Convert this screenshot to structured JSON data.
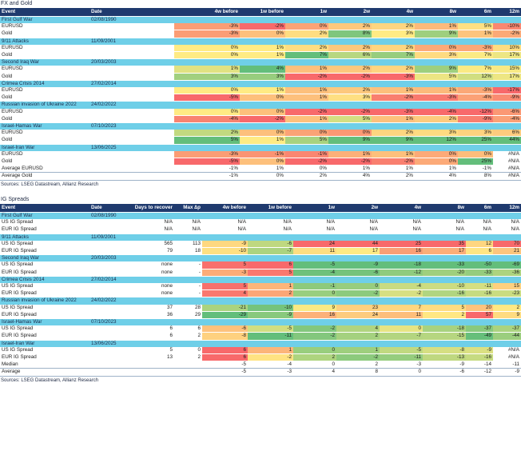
{
  "fx": {
    "title": "FX and Gold",
    "headers": [
      "Event",
      "Date",
      "4w before",
      "1w before",
      "1w",
      "2w",
      "4w",
      "8w",
      "6m",
      "12m"
    ],
    "events": [
      {
        "name": "First Gulf War",
        "date": "02/08/1990",
        "rows": [
          {
            "label": "EURUSD",
            "values": [
              "-3%",
              "-2%",
              "0%",
              "2%",
              "2%",
              "1%",
              "5%",
              "-10%"
            ]
          },
          {
            "label": "Gold",
            "values": [
              "-3%",
              "0%",
              "2%",
              "8%",
              "3%",
              "9%",
              "1%",
              "-2%"
            ]
          }
        ]
      },
      {
        "name": "9/11 Attacks",
        "date": "11/09/2001",
        "rows": [
          {
            "label": "EURUSD",
            "values": [
              "0%",
              "1%",
              "2%",
              "2%",
              "2%",
              "0%",
              "-3%",
              "10%"
            ]
          },
          {
            "label": "Gold",
            "values": [
              "0%",
              "1%",
              "7%",
              "6%",
              "7%",
              "3%",
              "7%",
              "17%"
            ]
          }
        ]
      },
      {
        "name": "Second Iraq War",
        "date": "20/03/2003",
        "rows": [
          {
            "label": "EURUSD",
            "values": [
              "1%",
              "4%",
              "1%",
              "2%",
              "2%",
              "9%",
              "7%",
              "15%"
            ]
          },
          {
            "label": "Gold",
            "values": [
              "3%",
              "3%",
              "-2%",
              "-2%",
              "-3%",
              "5%",
              "12%",
              "17%"
            ]
          }
        ]
      },
      {
        "name": "Crimea Crisis 2014",
        "date": "27/02/2014",
        "rows": [
          {
            "label": "EURUSD",
            "values": [
              "0%",
              "1%",
              "1%",
              "2%",
              "1%",
              "1%",
              "-3%",
              "-17%"
            ]
          },
          {
            "label": "Gold",
            "values": [
              "-5%",
              "0%",
              "1%",
              "3%",
              "-2%",
              "-3%",
              "-4%",
              "-9%"
            ]
          }
        ]
      },
      {
        "name": "Russian invasion of Ukraine 2022",
        "date": "24/02/2022",
        "rows": [
          {
            "label": "EURUSD",
            "values": [
              "0%",
              "0%",
              "-2%",
              "-2%",
              "-3%",
              "-4%",
              "-12%",
              "-6%"
            ]
          },
          {
            "label": "Gold",
            "values": [
              "-4%",
              "-2%",
              "1%",
              "5%",
              "1%",
              "2%",
              "-9%",
              "-4%"
            ]
          }
        ]
      },
      {
        "name": "Israel-Hamas War",
        "date": "07/10/2023",
        "rows": [
          {
            "label": "EURUSD",
            "values": [
              "2%",
              "0%",
              "0%",
              "0%",
              "2%",
              "3%",
              "3%",
              "6%"
            ]
          },
          {
            "label": "Gold",
            "values": [
              "5%",
              "1%",
              "5%",
              "9%",
              "9%",
              "12%",
              "25%",
              "44%"
            ]
          }
        ]
      },
      {
        "name": "Israel-Iran War",
        "date": "13/06/2025",
        "rows": [
          {
            "label": "EURUSD",
            "values": [
              "-3%",
              "-1%",
              "-1%",
              "1%",
              "1%",
              "0%",
              "0%",
              "#N/A"
            ]
          },
          {
            "label": "Gold",
            "values": [
              "-5%",
              "0%",
              "-2%",
              "-2%",
              "-2%",
              "0%",
              "25%",
              "#N/A"
            ]
          }
        ]
      }
    ],
    "summary": [
      {
        "label": "Average EURUSD",
        "values": [
          "-1%",
          "1%",
          "0%",
          "1%",
          "1%",
          "1%",
          "-1%",
          "#N/A"
        ]
      },
      {
        "label": "Average Gold",
        "values": [
          "-1%",
          "0%",
          "2%",
          "4%",
          "2%",
          "4%",
          "8%",
          "#N/A"
        ]
      }
    ],
    "source": "Sources: LSEG Datastream, Allianz Research"
  },
  "ig": {
    "title": "IG Spreads",
    "headers": [
      "Event",
      "Date",
      "Days to recover",
      "Max ∆p",
      "4w before",
      "1w before",
      "1w",
      "2w",
      "4w",
      "8w",
      "6m",
      "12m"
    ],
    "events": [
      {
        "name": "First Gulf War",
        "date": "02/08/1990",
        "rows": [
          {
            "label": "US IG Spread",
            "days": "N/A",
            "max": "N/A",
            "values": [
              "N/A",
              "N/A",
              "N/A",
              "N/A",
              "N/A",
              "N/A",
              "N/A",
              "N/A"
            ]
          },
          {
            "label": "EUR IG Spread",
            "days": "N/A",
            "max": "N/A",
            "values": [
              "N/A",
              "N/A",
              "N/A",
              "N/A",
              "N/A",
              "N/A",
              "N/A",
              "N/A"
            ]
          }
        ]
      },
      {
        "name": "9/11 Attacks",
        "date": "11/09/2001",
        "rows": [
          {
            "label": "US IG Spread",
            "days": "565",
            "max": "113",
            "values": [
              "-9",
              "-6",
              "24",
              "44",
              "25",
              "35",
              "12",
              "70"
            ]
          },
          {
            "label": "EUR IG Spread",
            "days": "79",
            "max": "18",
            "values": [
              "-10",
              "-7",
              "11",
              "17",
              "16",
              "17",
              "6",
              "21"
            ]
          }
        ]
      },
      {
        "name": "Second Iraq War",
        "date": "20/03/2003",
        "rows": [
          {
            "label": "US IG Spread",
            "days": "none",
            "max": "-",
            "values": [
              "5",
              "6",
              "-5",
              "-9",
              "-18",
              "-33",
              "-50",
              "-69"
            ]
          },
          {
            "label": "EUR IG Spread",
            "days": "none",
            "max": "-",
            "values": [
              "-3",
              "5",
              "-4",
              "-6",
              "-12",
              "-20",
              "-33",
              "-36"
            ]
          }
        ]
      },
      {
        "name": "Crimea Crisis 2014",
        "date": "27/02/2014",
        "rows": [
          {
            "label": "US IG Spread",
            "days": "none",
            "max": "-",
            "values": [
              "5",
              "1",
              "-1",
              "0",
              "-4",
              "-10",
              "-11",
              "15"
            ]
          },
          {
            "label": "EUR IG Spread",
            "days": "none",
            "max": "-",
            "values": [
              "4",
              "2",
              "0",
              "-2",
              "-2",
              "-16",
              "-16",
              "-23"
            ]
          }
        ]
      },
      {
        "name": "Russian invasion of Ukraine 2022",
        "date": "24/02/2022",
        "rows": [
          {
            "label": "US IG Spread",
            "days": "37",
            "max": "28",
            "values": [
              "-21",
              "-10",
              "9",
              "23",
              "7",
              "5",
              "20",
              "2"
            ]
          },
          {
            "label": "EUR IG Spread",
            "days": "36",
            "max": "29",
            "values": [
              "-29",
              "-9",
              "16",
              "24",
              "11",
              "2",
              "57",
              "9"
            ]
          }
        ]
      },
      {
        "name": "Israel-Hamas War",
        "date": "07/10/2023",
        "rows": [
          {
            "label": "US IG Spread",
            "days": "6",
            "max": "6",
            "values": [
              "-6",
              "-5",
              "-2",
              "4",
              "0",
              "-18",
              "-37",
              "-37"
            ]
          },
          {
            "label": "EUR IG Spread",
            "days": "6",
            "max": "2",
            "values": [
              "-8",
              "-11",
              "-2",
              "2",
              "-7",
              "-15",
              "-49",
              "-44"
            ]
          }
        ]
      },
      {
        "name": "Israel-Iran War",
        "date": "13/06/2025",
        "rows": [
          {
            "label": "US IG Spread",
            "days": "5",
            "max": "0",
            "values": [
              "6",
              "1",
              "0",
              "1",
              "-5",
              "-8",
              "-9",
              "#N/A"
            ]
          },
          {
            "label": "EUR IG Spread",
            "days": "13",
            "max": "2",
            "values": [
              "6",
              "-2",
              "2",
              "-2",
              "-11",
              "-13",
              "-16",
              "#N/A"
            ]
          }
        ]
      }
    ],
    "summary": [
      {
        "label": "Median",
        "values": [
          "-5",
          "-4",
          "0",
          "2",
          "-3",
          "-9",
          "-14",
          "-11"
        ]
      },
      {
        "label": "Average",
        "values": [
          "-5",
          "-3",
          "4",
          "8",
          "0",
          "-6",
          "-12",
          "-9"
        ]
      }
    ],
    "source": "Sources: LSEG Datastream, Allianz Research"
  },
  "scale_colors": {
    "negative": "#f8696b",
    "neutral": "#ffeb84",
    "positive": "#63be7b"
  }
}
